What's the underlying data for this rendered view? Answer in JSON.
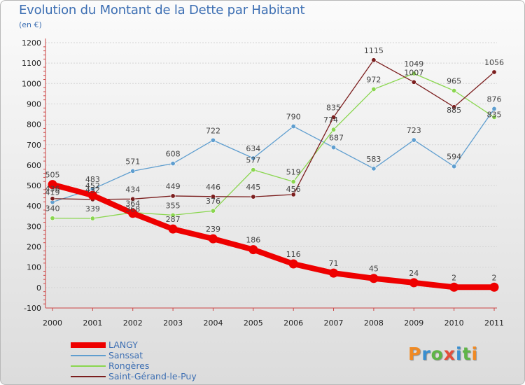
{
  "header": {
    "title": "Evolution du Montant de la Dette par Habitant",
    "subtitle": "(en €)"
  },
  "logo": {
    "text": "Proxiti",
    "colors": [
      "#f08a24",
      "#3a8fd0",
      "#5fb548",
      "#e44d3a",
      "#3a8fd0",
      "#5fb548",
      "#f08a24"
    ]
  },
  "chart_data": {
    "type": "line",
    "title": "Evolution du Montant de la Dette par Habitant",
    "subtitle": "(en €)",
    "xlabel": "",
    "ylabel": "",
    "x": [
      "2000",
      "2001",
      "2002",
      "2003",
      "2004",
      "2005",
      "2006",
      "2007",
      "2008",
      "2009",
      "2010",
      "2011"
    ],
    "ylim": [
      -100,
      1200
    ],
    "yticks": [
      "-100",
      "0",
      "100",
      "200",
      "300",
      "400",
      "500",
      "600",
      "700",
      "800",
      "900",
      "1000",
      "1100",
      "1200"
    ],
    "grid": "horizontal",
    "legend_position": "bottom-left",
    "series": [
      {
        "name": "LANGY",
        "color": "#ee0000",
        "values": [
          505,
          452,
          364,
          287,
          239,
          186,
          116,
          71,
          45,
          24,
          2,
          2
        ]
      },
      {
        "name": "Sanssat",
        "color": "#5f9ecf",
        "values": [
          419,
          483,
          571,
          608,
          722,
          634,
          790,
          687,
          583,
          723,
          594,
          876
        ]
      },
      {
        "name": "Rongères",
        "color": "#8ad64f",
        "values": [
          340,
          339,
          368,
          355,
          376,
          577,
          519,
          774,
          972,
          1049,
          965,
          835
        ]
      },
      {
        "name": "Saint-Gérand-le-Puy",
        "color": "#7b1e1e",
        "values": [
          436,
          432,
          434,
          449,
          446,
          445,
          456,
          835,
          1115,
          1007,
          885,
          1056
        ]
      }
    ]
  }
}
